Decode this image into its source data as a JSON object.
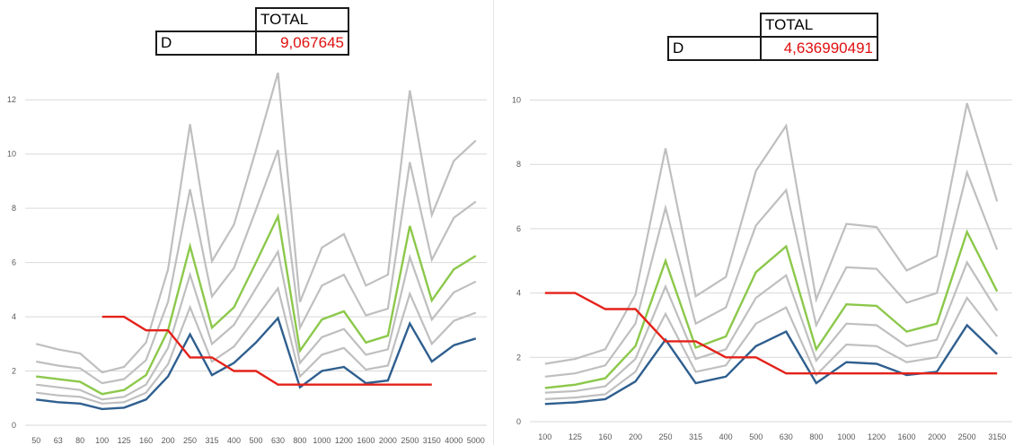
{
  "colors": {
    "gray": "#bfbfbf",
    "green": "#8cc84b",
    "blue": "#2f5f8f",
    "red": "#e4221a",
    "grid": "#d9d9d9",
    "value_text": "#e01010"
  },
  "left_panel": {
    "table": {
      "header": "TOTAL",
      "row_label": "D",
      "row_value": "9,067645"
    }
  },
  "right_panel": {
    "table": {
      "header": "TOTAL",
      "row_label": "D",
      "row_value": "4,636990491"
    }
  },
  "chart_data": [
    {
      "type": "line",
      "title": "",
      "xlabel": "",
      "ylabel": "",
      "grid": true,
      "ylim": [
        0,
        13
      ],
      "yticks": [
        0,
        2,
        4,
        6,
        8,
        10,
        12
      ],
      "categories": [
        "50",
        "63",
        "80",
        "100",
        "125",
        "160",
        "200",
        "250",
        "315",
        "400",
        "500",
        "630",
        "800",
        "1000",
        "1200",
        "1600",
        "2000",
        "2500",
        "3150",
        "4000",
        "5000"
      ],
      "series": [
        {
          "color_key": "gray",
          "values": [
            3.0,
            2.8,
            2.65,
            1.95,
            2.15,
            3.05,
            5.75,
            11.1,
            6.05,
            7.4,
            10.15,
            13.0,
            4.55,
            6.55,
            7.05,
            5.15,
            5.55,
            12.35,
            7.75,
            9.75,
            10.5
          ]
        },
        {
          "color_key": "gray",
          "values": [
            2.35,
            2.2,
            2.1,
            1.55,
            1.7,
            2.4,
            4.55,
            8.7,
            4.75,
            5.8,
            7.95,
            10.15,
            3.6,
            5.15,
            5.55,
            4.05,
            4.3,
            9.7,
            6.1,
            7.65,
            8.25
          ]
        },
        {
          "color_key": "green",
          "values": [
            1.8,
            1.7,
            1.6,
            1.15,
            1.3,
            1.85,
            3.5,
            6.6,
            3.6,
            4.35,
            6.0,
            7.7,
            2.75,
            3.9,
            4.2,
            3.05,
            3.3,
            7.35,
            4.6,
            5.75,
            6.25
          ]
        },
        {
          "color_key": "gray",
          "values": [
            1.5,
            1.4,
            1.3,
            0.95,
            1.05,
            1.5,
            2.85,
            5.55,
            3.0,
            3.7,
            5.05,
            6.4,
            2.3,
            3.25,
            3.55,
            2.6,
            2.8,
            6.2,
            3.9,
            4.9,
            5.3
          ]
        },
        {
          "color_key": "gray",
          "values": [
            1.2,
            1.1,
            1.05,
            0.8,
            0.85,
            1.2,
            2.25,
            4.35,
            2.35,
            2.9,
            3.95,
            5.05,
            1.8,
            2.6,
            2.85,
            2.05,
            2.2,
            4.85,
            3.0,
            3.85,
            4.15
          ]
        },
        {
          "color_key": "blue",
          "values": [
            0.95,
            0.85,
            0.8,
            0.6,
            0.65,
            0.95,
            1.8,
            3.35,
            1.85,
            2.3,
            3.05,
            3.95,
            1.4,
            2.0,
            2.15,
            1.55,
            1.65,
            3.75,
            2.35,
            2.95,
            3.2
          ]
        },
        {
          "color_key": "red",
          "values": [
            null,
            null,
            null,
            4.0,
            4.0,
            3.5,
            3.5,
            2.5,
            2.5,
            2.0,
            2.0,
            1.5,
            1.5,
            1.5,
            1.5,
            1.5,
            1.5,
            1.5,
            1.5,
            null,
            null
          ]
        }
      ]
    },
    {
      "type": "line",
      "title": "",
      "xlabel": "",
      "ylabel": "",
      "grid": true,
      "ylim": [
        0,
        10.6
      ],
      "yticks": [
        0,
        2,
        4,
        6,
        8,
        10
      ],
      "categories": [
        "100",
        "125",
        "160",
        "200",
        "250",
        "315",
        "400",
        "500",
        "630",
        "800",
        "1000",
        "1200",
        "1600",
        "2000",
        "2500",
        "3150"
      ],
      "series": [
        {
          "color_key": "gray",
          "values": [
            1.8,
            1.95,
            2.25,
            3.95,
            8.5,
            3.9,
            4.5,
            7.8,
            9.2,
            3.8,
            6.15,
            6.05,
            4.7,
            5.15,
            9.9,
            6.85
          ]
        },
        {
          "color_key": "gray",
          "values": [
            1.4,
            1.5,
            1.75,
            3.05,
            6.65,
            3.05,
            3.55,
            6.1,
            7.2,
            3.0,
            4.8,
            4.75,
            3.7,
            4.0,
            7.75,
            5.35
          ]
        },
        {
          "color_key": "green",
          "values": [
            1.05,
            1.15,
            1.35,
            2.35,
            5.0,
            2.3,
            2.65,
            4.65,
            5.45,
            2.25,
            3.65,
            3.6,
            2.8,
            3.05,
            5.9,
            4.05
          ]
        },
        {
          "color_key": "gray",
          "values": [
            0.9,
            0.95,
            1.1,
            1.95,
            4.2,
            1.95,
            2.25,
            3.85,
            4.55,
            1.9,
            3.05,
            3.0,
            2.35,
            2.55,
            4.95,
            3.45
          ]
        },
        {
          "color_key": "gray",
          "values": [
            0.7,
            0.75,
            0.85,
            1.55,
            3.35,
            1.55,
            1.75,
            3.05,
            3.55,
            1.45,
            2.4,
            2.35,
            1.85,
            2.0,
            3.85,
            2.65
          ]
        },
        {
          "color_key": "blue",
          "values": [
            0.55,
            0.6,
            0.7,
            1.25,
            2.55,
            1.2,
            1.4,
            2.35,
            2.8,
            1.2,
            1.85,
            1.8,
            1.45,
            1.55,
            3.0,
            2.1
          ]
        },
        {
          "color_key": "red",
          "values": [
            4.0,
            4.0,
            3.5,
            3.5,
            2.5,
            2.5,
            2.0,
            2.0,
            1.5,
            1.5,
            1.5,
            1.5,
            1.5,
            1.5,
            1.5,
            1.5
          ]
        }
      ]
    }
  ]
}
